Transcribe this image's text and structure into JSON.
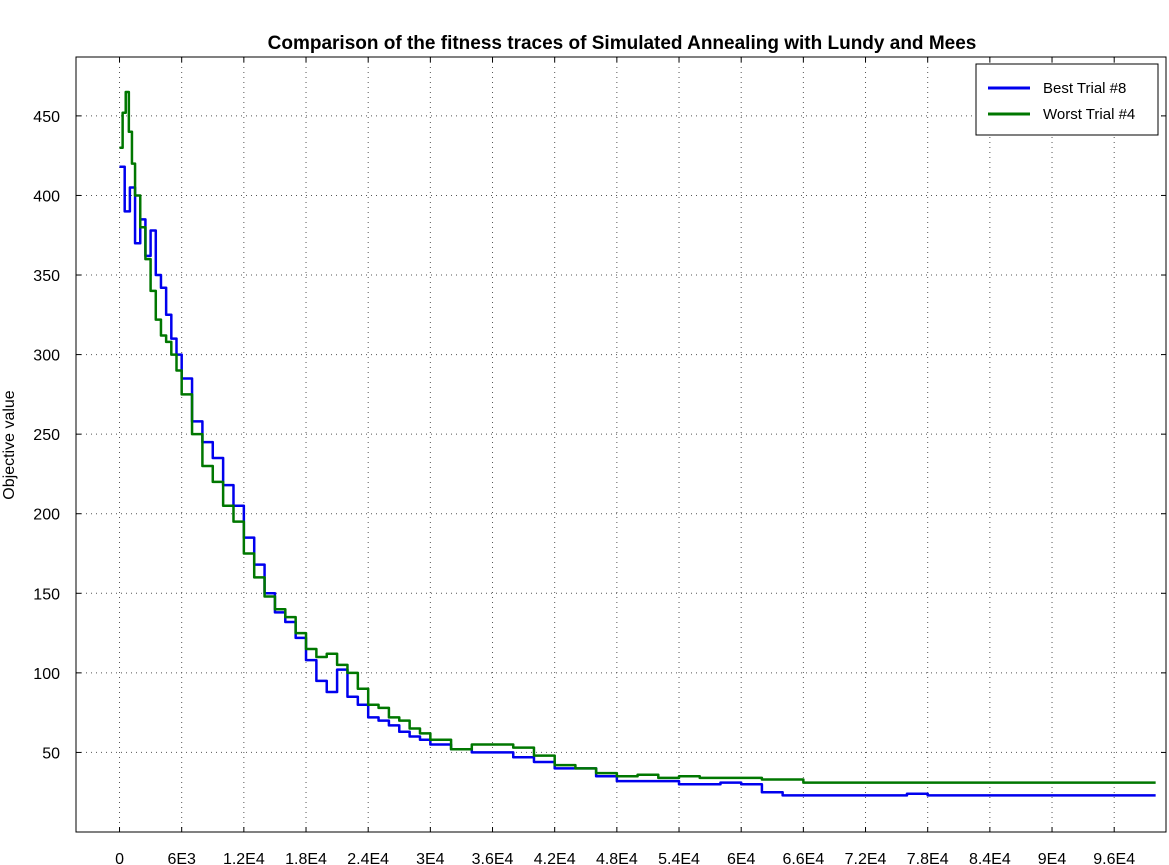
{
  "chart_data": {
    "type": "line",
    "title": "Comparison of the fitness traces of Simulated Annealing with Lundy and Mees",
    "xlabel": "",
    "ylabel": "Objective value",
    "xlim": [
      -4200,
      101000
    ],
    "ylim": [
      0,
      487
    ],
    "grid": true,
    "legend_position": "top-right",
    "x_ticks": [
      {
        "value": 0,
        "label": "0"
      },
      {
        "value": 6000,
        "label": "6E3"
      },
      {
        "value": 12000,
        "label": "1.2E4"
      },
      {
        "value": 18000,
        "label": "1.8E4"
      },
      {
        "value": 24000,
        "label": "2.4E4"
      },
      {
        "value": 30000,
        "label": "3E4"
      },
      {
        "value": 36000,
        "label": "3.6E4"
      },
      {
        "value": 42000,
        "label": "4.2E4"
      },
      {
        "value": 48000,
        "label": "4.8E4"
      },
      {
        "value": 54000,
        "label": "5.4E4"
      },
      {
        "value": 60000,
        "label": "6E4"
      },
      {
        "value": 66000,
        "label": "6.6E4"
      },
      {
        "value": 72000,
        "label": "7.2E4"
      },
      {
        "value": 78000,
        "label": "7.8E4"
      },
      {
        "value": 84000,
        "label": "8.4E4"
      },
      {
        "value": 90000,
        "label": "9E4"
      },
      {
        "value": 96000,
        "label": "9.6E4"
      }
    ],
    "y_ticks": [
      {
        "value": 50,
        "label": "50"
      },
      {
        "value": 100,
        "label": "100"
      },
      {
        "value": 150,
        "label": "150"
      },
      {
        "value": 200,
        "label": "200"
      },
      {
        "value": 250,
        "label": "250"
      },
      {
        "value": 300,
        "label": "300"
      },
      {
        "value": 350,
        "label": "350"
      },
      {
        "value": 400,
        "label": "400"
      },
      {
        "value": 450,
        "label": "450"
      }
    ],
    "series": [
      {
        "name": "Best Trial #8",
        "color": "#0000ee",
        "x": [
          0,
          500,
          1000,
          1500,
          2000,
          2500,
          3000,
          3500,
          4000,
          4500,
          5000,
          5500,
          6000,
          7000,
          8000,
          9000,
          10000,
          11000,
          12000,
          13000,
          14000,
          15000,
          16000,
          17000,
          18000,
          19000,
          20000,
          21000,
          22000,
          23000,
          24000,
          25000,
          26000,
          27000,
          28000,
          29000,
          30000,
          32000,
          34000,
          36000,
          38000,
          40000,
          42000,
          44000,
          46000,
          48000,
          50000,
          52000,
          54000,
          56000,
          58000,
          60000,
          62000,
          64000,
          66000,
          68000,
          70000,
          72000,
          74000,
          76000,
          78000,
          80000,
          85000,
          90000,
          95000,
          100000
        ],
        "y": [
          418,
          390,
          405,
          370,
          385,
          362,
          378,
          350,
          342,
          325,
          310,
          300,
          285,
          258,
          245,
          235,
          218,
          205,
          185,
          168,
          150,
          138,
          132,
          122,
          108,
          95,
          88,
          102,
          85,
          80,
          72,
          70,
          67,
          63,
          60,
          58,
          55,
          52,
          50,
          50,
          47,
          44,
          40,
          40,
          35,
          32,
          32,
          32,
          30,
          30,
          31,
          30,
          25,
          23,
          23,
          23,
          23,
          23,
          23,
          24,
          23,
          23,
          23,
          23,
          23,
          23
        ]
      },
      {
        "name": "Worst Trial #4",
        "color": "#007700",
        "x": [
          0,
          300,
          600,
          900,
          1200,
          1500,
          2000,
          2500,
          3000,
          3500,
          4000,
          4500,
          5000,
          5500,
          6000,
          7000,
          8000,
          9000,
          10000,
          11000,
          12000,
          13000,
          14000,
          15000,
          16000,
          17000,
          18000,
          19000,
          20000,
          21000,
          22000,
          23000,
          24000,
          25000,
          26000,
          27000,
          28000,
          29000,
          30000,
          32000,
          34000,
          36000,
          38000,
          40000,
          42000,
          44000,
          46000,
          48000,
          50000,
          52000,
          54000,
          56000,
          58000,
          60000,
          62000,
          64000,
          66000,
          68000,
          70000,
          72000,
          74000,
          76000,
          78000,
          80000,
          85000,
          90000,
          95000,
          100000
        ],
        "y": [
          430,
          452,
          465,
          440,
          420,
          400,
          380,
          360,
          340,
          322,
          312,
          308,
          300,
          290,
          275,
          250,
          230,
          220,
          205,
          195,
          175,
          160,
          148,
          140,
          135,
          125,
          115,
          110,
          112,
          105,
          100,
          90,
          80,
          78,
          72,
          70,
          65,
          62,
          58,
          52,
          55,
          55,
          53,
          48,
          42,
          40,
          37,
          35,
          36,
          34,
          35,
          34,
          34,
          34,
          33,
          33,
          31,
          31,
          31,
          31,
          31,
          31,
          31,
          31,
          31,
          31,
          31,
          31
        ]
      }
    ]
  }
}
